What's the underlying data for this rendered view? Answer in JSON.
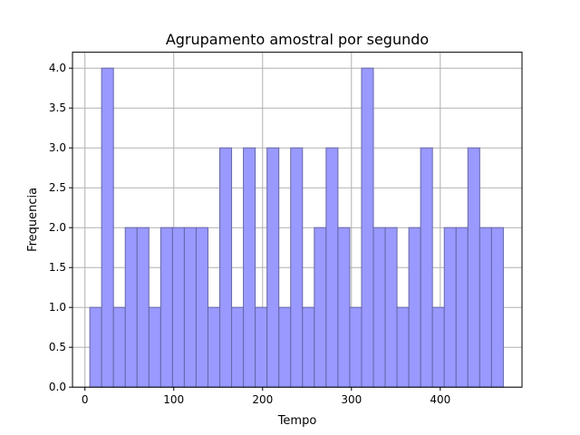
{
  "chart_data": {
    "type": "bar",
    "title": "Agrupamento amostral por segundo",
    "xlabel": "Tempo",
    "ylabel": "Frequencia",
    "xlim": [
      -14,
      492
    ],
    "ylim": [
      0,
      4.2
    ],
    "xticks": [
      0,
      100,
      200,
      300,
      400
    ],
    "yticks": [
      0.0,
      0.5,
      1.0,
      1.5,
      2.0,
      2.5,
      3.0,
      3.5,
      4.0
    ],
    "ytick_labels": [
      "0.0",
      "0.5",
      "1.0",
      "1.5",
      "2.0",
      "2.5",
      "3.0",
      "3.5",
      "4.0"
    ],
    "grid": true,
    "bin_start": 5.5,
    "bin_width": 13.3,
    "values": [
      1,
      4,
      1,
      2,
      2,
      1,
      2,
      2,
      2,
      2,
      1,
      3,
      1,
      3,
      1,
      3,
      1,
      3,
      1,
      2,
      3,
      2,
      1,
      4,
      2,
      2,
      1,
      2,
      3,
      1,
      2,
      2,
      3,
      2,
      2
    ],
    "bar_color": "#9999ff",
    "bar_edge_color": "#6666aa"
  }
}
